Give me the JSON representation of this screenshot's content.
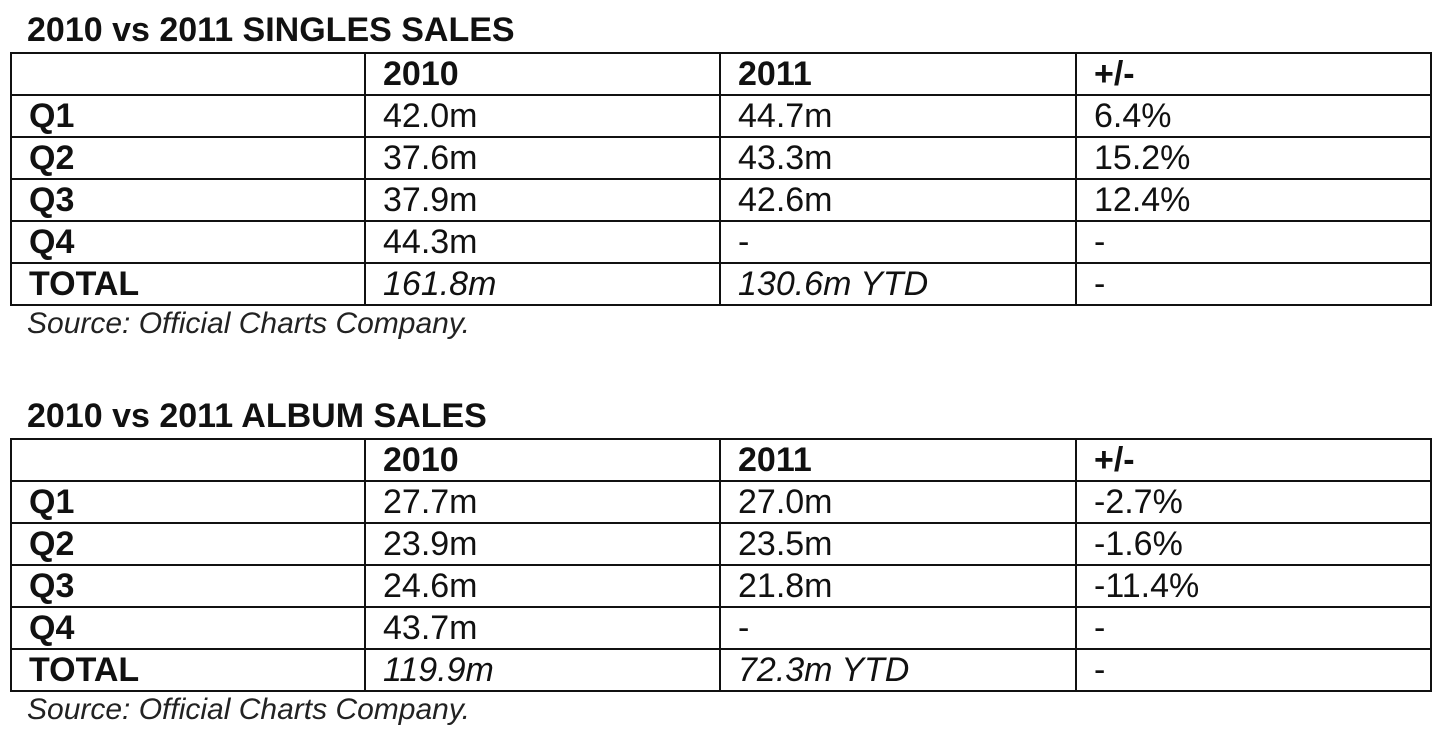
{
  "tables": [
    {
      "title": "2010 vs 2011 SINGLES SALES",
      "headers": [
        "",
        "2010",
        "2011",
        "+/-"
      ],
      "rows": [
        [
          "Q1",
          "42.0m",
          "44.7m",
          "6.4%"
        ],
        [
          "Q2",
          "37.6m",
          "43.3m",
          "15.2%"
        ],
        [
          "Q3",
          "37.9m",
          "42.6m",
          "12.4%"
        ],
        [
          "Q4",
          "44.3m",
          "-",
          "-"
        ],
        [
          "TOTAL",
          "161.8m",
          "130.6m YTD",
          "-"
        ]
      ],
      "source": "Source: Official Charts Company."
    },
    {
      "title": "2010 vs 2011 ALBUM SALES",
      "headers": [
        "",
        "2010",
        "2011",
        "+/-"
      ],
      "rows": [
        [
          "Q1",
          "27.7m",
          "27.0m",
          "-2.7%"
        ],
        [
          "Q2",
          "23.9m",
          "23.5m",
          "-1.6%"
        ],
        [
          "Q3",
          "24.6m",
          "21.8m",
          "-11.4%"
        ],
        [
          "Q4",
          "43.7m",
          "-",
          "-"
        ],
        [
          "TOTAL",
          "119.9m",
          "72.3m YTD",
          "-"
        ]
      ],
      "source": "Source: Official Charts Company."
    }
  ]
}
